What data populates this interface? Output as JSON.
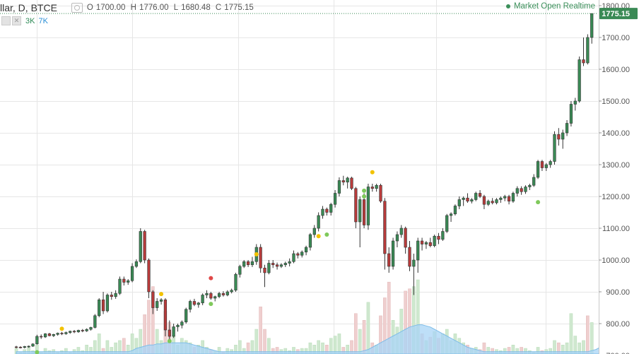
{
  "header": {
    "title": "llar, D, BTCE",
    "ohlc": {
      "o_label": "O",
      "o": "1700.00",
      "h_label": "H",
      "h": "1776.00",
      "l_label": "L",
      "l": "1680.48",
      "c_label": "C",
      "c": "1775.15"
    },
    "volume_a": "3K",
    "volume_b": "7K",
    "status": "Market Open Realtime"
  },
  "colors": {
    "up": "#3a8a55",
    "down": "#b83b3b",
    "grid": "#e6e6e6",
    "price_tag": "#3a8a55",
    "vol_up": "#cfe8cf",
    "vol_down": "#efcfcf",
    "area": "#a8d4f5"
  },
  "chart_data": {
    "type": "candlestick",
    "last_price_label": "1775.15",
    "y_ticks": [
      "1800.00",
      "1700.00",
      "1600.00",
      "1500.00",
      "1400.00",
      "1300.00",
      "1200.00",
      "1100.00",
      "1000.00",
      "900.00",
      "800.00",
      "700.00"
    ],
    "ylim": [
      700,
      1800
    ],
    "candles": [
      [
        727,
        730,
        722,
        726
      ],
      [
        726,
        729,
        722,
        725
      ],
      [
        725,
        730,
        722,
        728
      ],
      [
        728,
        731,
        724,
        729
      ],
      [
        729,
        738,
        727,
        736
      ],
      [
        736,
        765,
        734,
        760
      ],
      [
        760,
        766,
        752,
        758
      ],
      [
        758,
        770,
        755,
        768
      ],
      [
        768,
        771,
        760,
        762
      ],
      [
        762,
        768,
        758,
        766
      ],
      [
        766,
        772,
        762,
        770
      ],
      [
        770,
        774,
        764,
        768
      ],
      [
        768,
        775,
        765,
        772
      ],
      [
        772,
        778,
        768,
        776
      ],
      [
        776,
        780,
        770,
        774
      ],
      [
        774,
        781,
        771,
        779
      ],
      [
        779,
        783,
        773,
        777
      ],
      [
        777,
        785,
        774,
        782
      ],
      [
        782,
        790,
        778,
        788
      ],
      [
        788,
        830,
        785,
        825
      ],
      [
        825,
        880,
        820,
        875
      ],
      [
        875,
        900,
        830,
        840
      ],
      [
        840,
        895,
        835,
        890
      ],
      [
        890,
        900,
        875,
        885
      ],
      [
        885,
        905,
        878,
        895
      ],
      [
        895,
        948,
        890,
        940
      ],
      [
        940,
        948,
        920,
        930
      ],
      [
        930,
        940,
        922,
        935
      ],
      [
        935,
        990,
        930,
        980
      ],
      [
        980,
        1002,
        975,
        995
      ],
      [
        995,
        1100,
        990,
        1090
      ],
      [
        1090,
        1095,
        990,
        1000
      ],
      [
        1000,
        1005,
        880,
        900
      ],
      [
        900,
        905,
        830,
        850
      ],
      [
        850,
        880,
        840,
        870
      ],
      [
        870,
        880,
        860,
        875
      ],
      [
        875,
        880,
        760,
        780
      ],
      [
        780,
        810,
        745,
        760
      ],
      [
        760,
        800,
        755,
        790
      ],
      [
        790,
        800,
        775,
        795
      ],
      [
        795,
        810,
        785,
        805
      ],
      [
        805,
        850,
        800,
        845
      ],
      [
        845,
        875,
        835,
        870
      ],
      [
        870,
        878,
        855,
        860
      ],
      [
        860,
        868,
        850,
        865
      ],
      [
        865,
        895,
        858,
        890
      ],
      [
        890,
        905,
        880,
        895
      ],
      [
        895,
        900,
        875,
        880
      ],
      [
        880,
        888,
        870,
        885
      ],
      [
        885,
        900,
        880,
        895
      ],
      [
        895,
        902,
        885,
        890
      ],
      [
        890,
        905,
        886,
        900
      ],
      [
        900,
        910,
        895,
        905
      ],
      [
        905,
        960,
        900,
        955
      ],
      [
        955,
        985,
        945,
        980
      ],
      [
        980,
        1000,
        975,
        995
      ],
      [
        995,
        1000,
        978,
        985
      ],
      [
        985,
        1010,
        978,
        995
      ],
      [
        995,
        1050,
        985,
        1040
      ],
      [
        1040,
        1050,
        960,
        975
      ],
      [
        975,
        985,
        915,
        960
      ],
      [
        960,
        1000,
        955,
        990
      ],
      [
        990,
        1000,
        975,
        985
      ],
      [
        985,
        992,
        970,
        980
      ],
      [
        980,
        990,
        975,
        985
      ],
      [
        985,
        995,
        978,
        990
      ],
      [
        990,
        1005,
        980,
        995
      ],
      [
        995,
        1030,
        990,
        1020
      ],
      [
        1020,
        1025,
        1005,
        1015
      ],
      [
        1015,
        1030,
        1008,
        1025
      ],
      [
        1025,
        1045,
        1015,
        1040
      ],
      [
        1040,
        1085,
        1030,
        1080
      ],
      [
        1080,
        1110,
        1070,
        1100
      ],
      [
        1100,
        1150,
        1090,
        1140
      ],
      [
        1140,
        1170,
        1130,
        1160
      ],
      [
        1160,
        1165,
        1140,
        1150
      ],
      [
        1150,
        1180,
        1140,
        1175
      ],
      [
        1175,
        1220,
        1165,
        1210
      ],
      [
        1210,
        1260,
        1200,
        1250
      ],
      [
        1250,
        1265,
        1235,
        1245
      ],
      [
        1245,
        1262,
        1225,
        1258
      ],
      [
        1258,
        1262,
        1220,
        1225
      ],
      [
        1225,
        1230,
        1100,
        1120
      ],
      [
        1120,
        1200,
        1040,
        1190
      ],
      [
        1190,
        1210,
        1100,
        1110
      ],
      [
        1110,
        1240,
        1095,
        1230
      ],
      [
        1230,
        1240,
        1215,
        1225
      ],
      [
        1225,
        1240,
        1215,
        1235
      ],
      [
        1235,
        1240,
        1180,
        1185
      ],
      [
        1185,
        1195,
        970,
        1020
      ],
      [
        1020,
        1040,
        960,
        980
      ],
      [
        980,
        1070,
        970,
        1060
      ],
      [
        1060,
        1090,
        1040,
        1080
      ],
      [
        1080,
        1110,
        1070,
        1100
      ],
      [
        1100,
        1105,
        1020,
        1040
      ],
      [
        1040,
        1060,
        965,
        980
      ],
      [
        980,
        1020,
        890,
        1000
      ],
      [
        1000,
        1070,
        960,
        1060
      ],
      [
        1060,
        1070,
        1030,
        1050
      ],
      [
        1050,
        1060,
        1035,
        1055
      ],
      [
        1055,
        1070,
        1040,
        1045
      ],
      [
        1045,
        1080,
        1040,
        1075
      ],
      [
        1075,
        1085,
        1050,
        1065
      ],
      [
        1065,
        1100,
        1060,
        1090
      ],
      [
        1090,
        1145,
        1085,
        1140
      ],
      [
        1140,
        1150,
        1120,
        1145
      ],
      [
        1145,
        1175,
        1140,
        1170
      ],
      [
        1170,
        1200,
        1160,
        1190
      ],
      [
        1190,
        1200,
        1170,
        1195
      ],
      [
        1195,
        1210,
        1180,
        1185
      ],
      [
        1185,
        1195,
        1178,
        1190
      ],
      [
        1190,
        1215,
        1185,
        1210
      ],
      [
        1210,
        1220,
        1195,
        1200
      ],
      [
        1200,
        1205,
        1160,
        1175
      ],
      [
        1175,
        1190,
        1170,
        1185
      ],
      [
        1185,
        1195,
        1175,
        1180
      ],
      [
        1180,
        1195,
        1175,
        1190
      ],
      [
        1190,
        1200,
        1180,
        1195
      ],
      [
        1195,
        1205,
        1185,
        1200
      ],
      [
        1200,
        1205,
        1175,
        1185
      ],
      [
        1185,
        1215,
        1180,
        1210
      ],
      [
        1210,
        1232,
        1200,
        1225
      ],
      [
        1225,
        1232,
        1205,
        1215
      ],
      [
        1215,
        1235,
        1208,
        1230
      ],
      [
        1230,
        1240,
        1220,
        1235
      ],
      [
        1235,
        1270,
        1230,
        1260
      ],
      [
        1260,
        1315,
        1255,
        1310
      ],
      [
        1310,
        1315,
        1280,
        1290
      ],
      [
        1290,
        1305,
        1280,
        1300
      ],
      [
        1300,
        1315,
        1290,
        1310
      ],
      [
        1310,
        1405,
        1300,
        1395
      ],
      [
        1395,
        1415,
        1360,
        1380
      ],
      [
        1380,
        1410,
        1350,
        1400
      ],
      [
        1400,
        1440,
        1390,
        1430
      ],
      [
        1430,
        1500,
        1420,
        1490
      ],
      [
        1490,
        1510,
        1470,
        1500
      ],
      [
        1500,
        1640,
        1495,
        1630
      ],
      [
        1630,
        1700,
        1610,
        1620
      ],
      [
        1620,
        1710,
        1615,
        1700
      ],
      [
        1700,
        1776,
        1680.48,
        1775.15
      ]
    ],
    "volume": [
      [
        0.05,
        1
      ],
      [
        0.02,
        1
      ],
      [
        0.04,
        1
      ],
      [
        0.06,
        1
      ],
      [
        0.03,
        1
      ],
      [
        0.08,
        1
      ],
      [
        0.02,
        1
      ],
      [
        0.05,
        1
      ],
      [
        0.03,
        1
      ],
      [
        0.04,
        1
      ],
      [
        0.02,
        1
      ],
      [
        0.03,
        1
      ],
      [
        0.05,
        1
      ],
      [
        0.02,
        1
      ],
      [
        0.04,
        1
      ],
      [
        0.06,
        1
      ],
      [
        0.03,
        1
      ],
      [
        0.08,
        1
      ],
      [
        0.06,
        1
      ],
      [
        0.12,
        1
      ],
      [
        0.18,
        1
      ],
      [
        0.05,
        0
      ],
      [
        0.12,
        1
      ],
      [
        0.06,
        1
      ],
      [
        0.1,
        1
      ],
      [
        0.12,
        1
      ],
      [
        0.14,
        0
      ],
      [
        0.08,
        1
      ],
      [
        0.18,
        1
      ],
      [
        0.14,
        1
      ],
      [
        0.22,
        1
      ],
      [
        0.35,
        0
      ],
      [
        0.48,
        0
      ],
      [
        0.6,
        0
      ],
      [
        0.22,
        1
      ],
      [
        0.12,
        1
      ],
      [
        0.38,
        0
      ],
      [
        0.28,
        0
      ],
      [
        0.16,
        1
      ],
      [
        0.08,
        1
      ],
      [
        0.14,
        1
      ],
      [
        0.12,
        1
      ],
      [
        0.1,
        1
      ],
      [
        0.06,
        0
      ],
      [
        0.08,
        1
      ],
      [
        0.12,
        1
      ],
      [
        0.06,
        1
      ],
      [
        0.04,
        0
      ],
      [
        0.03,
        1
      ],
      [
        0.06,
        1
      ],
      [
        0.02,
        0
      ],
      [
        0.05,
        1
      ],
      [
        0.04,
        1
      ],
      [
        0.08,
        1
      ],
      [
        0.12,
        1
      ],
      [
        0.05,
        1
      ],
      [
        0.1,
        0
      ],
      [
        0.12,
        1
      ],
      [
        0.22,
        1
      ],
      [
        0.42,
        0
      ],
      [
        0.22,
        0
      ],
      [
        0.14,
        1
      ],
      [
        0.05,
        0
      ],
      [
        0.06,
        0
      ],
      [
        0.04,
        1
      ],
      [
        0.05,
        1
      ],
      [
        0.03,
        1
      ],
      [
        0.06,
        1
      ],
      [
        0.04,
        0
      ],
      [
        0.05,
        1
      ],
      [
        0.05,
        1
      ],
      [
        0.1,
        1
      ],
      [
        0.08,
        1
      ],
      [
        0.12,
        1
      ],
      [
        0.1,
        1
      ],
      [
        0.08,
        0
      ],
      [
        0.14,
        1
      ],
      [
        0.16,
        1
      ],
      [
        0.18,
        1
      ],
      [
        0.06,
        0
      ],
      [
        0.08,
        1
      ],
      [
        0.12,
        0
      ],
      [
        0.36,
        0
      ],
      [
        0.22,
        1
      ],
      [
        0.3,
        0
      ],
      [
        0.46,
        1
      ],
      [
        0.1,
        0
      ],
      [
        0.08,
        1
      ],
      [
        0.34,
        0
      ],
      [
        0.5,
        0
      ],
      [
        0.64,
        0
      ],
      [
        0.3,
        1
      ],
      [
        0.24,
        1
      ],
      [
        0.4,
        1
      ],
      [
        0.56,
        0
      ],
      [
        0.58,
        0
      ],
      [
        0.6,
        1
      ],
      [
        0.66,
        1
      ],
      [
        0.18,
        0
      ],
      [
        0.12,
        1
      ],
      [
        0.15,
        0
      ],
      [
        0.2,
        1
      ],
      [
        0.14,
        0
      ],
      [
        0.18,
        1
      ],
      [
        0.22,
        1
      ],
      [
        0.12,
        1
      ],
      [
        0.18,
        1
      ],
      [
        0.14,
        1
      ],
      [
        0.1,
        1
      ],
      [
        0.08,
        0
      ],
      [
        0.05,
        1
      ],
      [
        0.06,
        1
      ],
      [
        0.04,
        0
      ],
      [
        0.1,
        0
      ],
      [
        0.06,
        1
      ],
      [
        0.05,
        0
      ],
      [
        0.04,
        1
      ],
      [
        0.03,
        1
      ],
      [
        0.05,
        1
      ],
      [
        0.06,
        0
      ],
      [
        0.08,
        1
      ],
      [
        0.05,
        1
      ],
      [
        0.06,
        0
      ],
      [
        0.05,
        1
      ],
      [
        0.03,
        1
      ],
      [
        0.02,
        1
      ],
      [
        0.06,
        1
      ],
      [
        0.03,
        0
      ],
      [
        0.04,
        1
      ],
      [
        0.05,
        1
      ],
      [
        0.12,
        1
      ],
      [
        0.1,
        0
      ],
      [
        0.08,
        1
      ],
      [
        0.1,
        1
      ],
      [
        0.36,
        1
      ],
      [
        0.16,
        1
      ],
      [
        0.1,
        1
      ],
      [
        0.12,
        1
      ],
      [
        0.34,
        0
      ],
      [
        0.28,
        1
      ]
    ],
    "volume_ma": [
      0.02,
      0.02,
      0.02,
      0.02,
      0.02,
      0.02,
      0.02,
      0.02,
      0.02,
      0.02,
      0.02,
      0.02,
      0.02,
      0.02,
      0.02,
      0.02,
      0.02,
      0.02,
      0.02,
      0.02,
      0.02,
      0.02,
      0.02,
      0.02,
      0.02,
      0.02,
      0.02,
      0.02,
      0.03,
      0.05,
      0.06,
      0.07,
      0.08,
      0.08,
      0.09,
      0.09,
      0.1,
      0.1,
      0.1,
      0.1,
      0.1,
      0.1,
      0.09,
      0.08,
      0.07,
      0.06,
      0.05,
      0.04,
      0.03,
      0.02,
      0.02,
      0.02,
      0.02,
      0.02,
      0.02,
      0.02,
      0.02,
      0.02,
      0.02,
      0.02,
      0.02,
      0.02,
      0.02,
      0.02,
      0.02,
      0.02,
      0.02,
      0.02,
      0.02,
      0.02,
      0.02,
      0.02,
      0.02,
      0.02,
      0.02,
      0.02,
      0.02,
      0.02,
      0.02,
      0.02,
      0.02,
      0.02,
      0.02,
      0.02,
      0.03,
      0.04,
      0.06,
      0.08,
      0.1,
      0.12,
      0.14,
      0.16,
      0.18,
      0.2,
      0.22,
      0.24,
      0.25,
      0.26,
      0.26,
      0.25,
      0.24,
      0.22,
      0.2,
      0.18,
      0.16,
      0.14,
      0.12,
      0.1,
      0.08,
      0.06,
      0.05,
      0.04,
      0.03,
      0.02,
      0.02,
      0.02,
      0.02,
      0.02,
      0.02,
      0.02,
      0.02,
      0.02,
      0.02,
      0.02,
      0.02,
      0.02,
      0.02,
      0.02,
      0.02,
      0.02,
      0.02,
      0.02,
      0.02,
      0.02,
      0.02,
      0.02,
      0.02,
      0.02,
      0.02,
      0.03,
      0.04,
      0.06,
      0.07,
      0.08
    ],
    "markers": [
      {
        "i": 5,
        "price": 710,
        "color": "#7fc95b"
      },
      {
        "i": 11,
        "price": 784,
        "color": "#f2c200"
      },
      {
        "i": 35,
        "price": 893,
        "color": "#f2c200"
      },
      {
        "i": 37,
        "price": 745,
        "color": "#7fc95b"
      },
      {
        "i": 47,
        "price": 943,
        "color": "#e04848"
      },
      {
        "i": 47,
        "price": 862,
        "color": "#7fc95b"
      },
      {
        "i": 58,
        "price": 1018,
        "color": "#f2c200"
      },
      {
        "i": 73,
        "price": 1075,
        "color": "#f2c200"
      },
      {
        "i": 75,
        "price": 1080,
        "color": "#7fc95b"
      },
      {
        "i": 84,
        "price": 1218,
        "color": "#7fc95b"
      },
      {
        "i": 84,
        "price": 1200,
        "color": "#7fc95b"
      },
      {
        "i": 86,
        "price": 1276,
        "color": "#f2c200"
      },
      {
        "i": 126,
        "price": 1182,
        "color": "#7fc95b"
      }
    ]
  }
}
